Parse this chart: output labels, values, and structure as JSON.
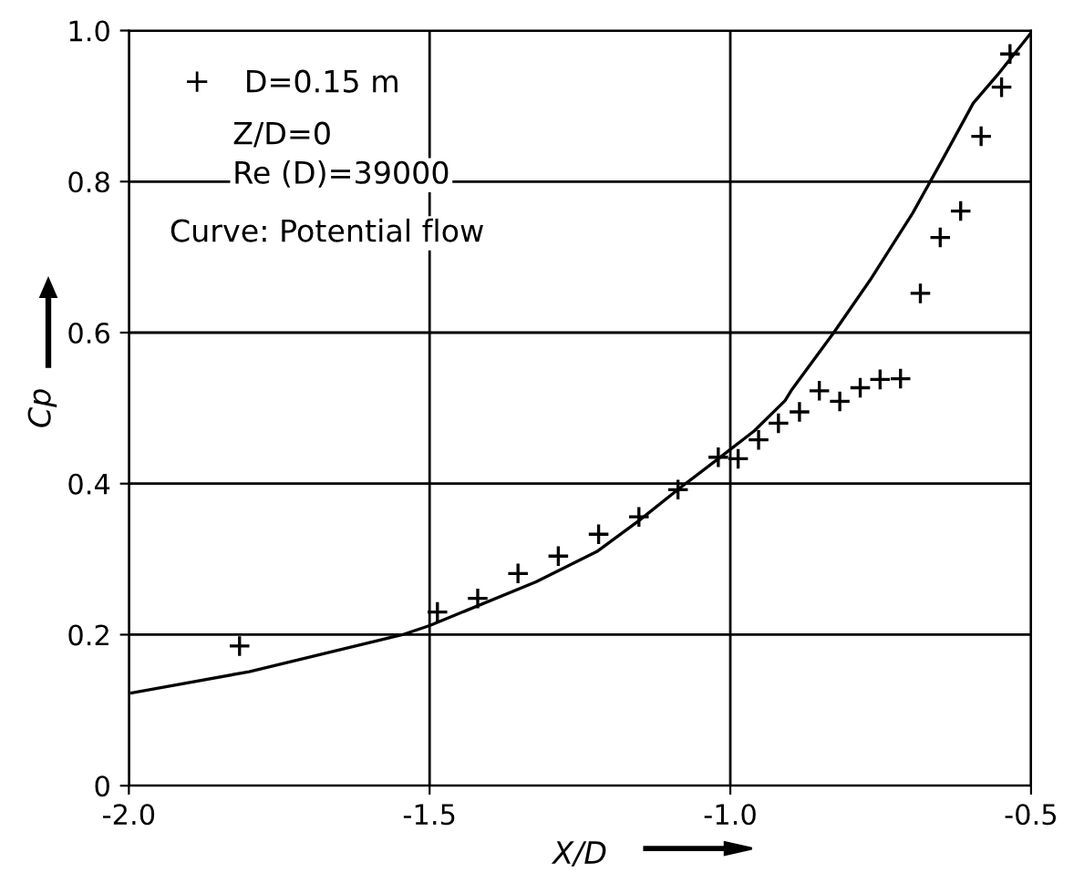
{
  "chart_data": {
    "type": "scatter",
    "xlabel": "X/D",
    "ylabel": "Cp",
    "xlim": [
      -2.0,
      -0.5
    ],
    "ylim": [
      0,
      1.0
    ],
    "xticks": [
      {
        "value": -2.0,
        "label": "-2.0"
      },
      {
        "value": -1.5,
        "label": "-1.5"
      },
      {
        "value": -1.0,
        "label": "-1.0"
      },
      {
        "value": -0.5,
        "label": "-0.5"
      }
    ],
    "yticks": [
      0,
      0.2,
      0.4,
      0.6,
      0.8,
      {
        "value": 1.0,
        "label": "1.0"
      }
    ],
    "grid": true,
    "legend": "top left",
    "annotations": [
      "Z/D=0",
      "Re (D)=39000",
      "Curve: Potential flow"
    ],
    "series": [
      {
        "name": "D=0.15 m",
        "marker": "cross",
        "color": "#000000",
        "x": [
          -1.816,
          -1.487,
          -1.42,
          -1.353,
          -1.286,
          -1.219,
          -1.152,
          -1.087,
          -1.02,
          -0.987,
          -0.953,
          -0.92,
          -0.885,
          -0.852,
          -0.818,
          -0.784,
          -0.751,
          -0.717,
          -0.684,
          -0.651,
          -0.617,
          -0.583,
          -0.549,
          -0.535
        ],
        "values": [
          0.185,
          0.23,
          0.248,
          0.281,
          0.304,
          0.333,
          0.356,
          0.392,
          0.435,
          0.433,
          0.458,
          0.48,
          0.495,
          0.523,
          0.509,
          0.527,
          0.538,
          0.539,
          0.652,
          0.726,
          0.761,
          0.86,
          0.925,
          0.969
        ]
      },
      {
        "type": "line",
        "color": "#000000",
        "x": [
          -1.995,
          -1.8,
          -1.545,
          -1.5,
          -1.323,
          -1.222,
          -1.152,
          -1.081,
          -1.02,
          -0.96,
          -0.909,
          -0.899,
          -0.828,
          -0.768,
          -0.697,
          -0.646,
          -0.596,
          -0.556,
          -0.5
        ],
        "values": [
          0.123,
          0.151,
          0.2,
          0.212,
          0.27,
          0.31,
          0.351,
          0.396,
          0.433,
          0.47,
          0.51,
          0.523,
          0.6,
          0.669,
          0.758,
          0.831,
          0.904,
          0.941,
          0.997
        ]
      }
    ]
  }
}
